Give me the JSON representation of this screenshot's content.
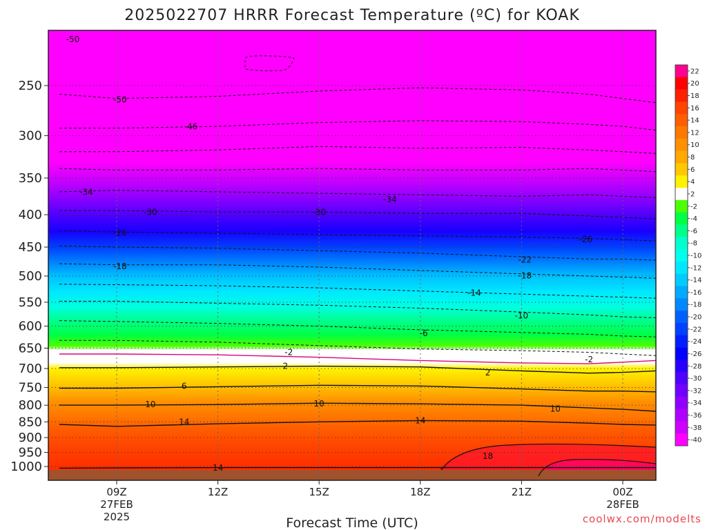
{
  "chart_data": {
    "type": "heatmap",
    "title": "2025022707 HRRR Forecast Temperature (ºC) for KOAK",
    "xlabel": "Forecast Time (UTC)",
    "ylabel": "",
    "y_scale": "log-pressure",
    "y_ticks": [
      250,
      300,
      350,
      400,
      450,
      500,
      550,
      600,
      650,
      700,
      750,
      800,
      850,
      900,
      950,
      1000
    ],
    "x_ticks": [
      {
        "label": "09Z",
        "sub1": "27FEB",
        "sub2": "2025"
      },
      {
        "label": "12Z",
        "sub1": "",
        "sub2": ""
      },
      {
        "label": "15Z",
        "sub1": "",
        "sub2": ""
      },
      {
        "label": "18Z",
        "sub1": "",
        "sub2": ""
      },
      {
        "label": "21Z",
        "sub1": "",
        "sub2": ""
      },
      {
        "label": "00Z",
        "sub1": "28FEB",
        "sub2": ""
      }
    ],
    "colorbar": {
      "labels": [
        "22",
        "20",
        "18",
        "16",
        "14",
        "12",
        "10",
        "8",
        "6",
        "4",
        "2",
        "-2",
        "-4",
        "-6",
        "-8",
        "-10",
        "-12",
        "-14",
        "-16",
        "-18",
        "-20",
        "-22",
        "-24",
        "-26",
        "-28",
        "-30",
        "-32",
        "-34",
        "-36",
        "-38",
        "-40"
      ],
      "colors": [
        "#ff0090",
        "#ff0000",
        "#ff2000",
        "#ff4400",
        "#ff5e00",
        "#ff7800",
        "#ff9000",
        "#ffa800",
        "#ffc800",
        "#fff200",
        "#ffffff",
        "#4cff00",
        "#00ff44",
        "#00ff88",
        "#00ffcc",
        "#00ffee",
        "#00e8ff",
        "#00ccff",
        "#00aaff",
        "#0088ff",
        "#0060ff",
        "#0040ff",
        "#0020ff",
        "#0000ff",
        "#2800ff",
        "#5000ff",
        "#7000ff",
        "#9000ff",
        "#b000ff",
        "#d000ff",
        "#ff00ff"
      ]
    },
    "contour_labels": [
      {
        "text": "-50",
        "t": 7.7,
        "p": 211
      },
      {
        "text": "-50",
        "t": 9.1,
        "p": 263
      },
      {
        "text": "-46",
        "t": 11.2,
        "p": 290
      },
      {
        "text": "-34",
        "t": 8.1,
        "p": 368
      },
      {
        "text": "-34",
        "t": 17.1,
        "p": 378
      },
      {
        "text": "-30",
        "t": 10.0,
        "p": 396
      },
      {
        "text": "-30",
        "t": 15.0,
        "p": 396
      },
      {
        "text": "-26",
        "t": 9.1,
        "p": 427
      },
      {
        "text": "-26",
        "t": 22.9,
        "p": 437
      },
      {
        "text": "-22",
        "t": 21.1,
        "p": 471
      },
      {
        "text": "-18",
        "t": 9.1,
        "p": 482
      },
      {
        "text": "-18",
        "t": 21.1,
        "p": 499
      },
      {
        "text": "-14",
        "t": 19.6,
        "p": 531
      },
      {
        "text": "-10",
        "t": 21.0,
        "p": 577
      },
      {
        "text": "-6",
        "t": 18.1,
        "p": 615
      },
      {
        "text": "-2",
        "t": 14.1,
        "p": 659
      },
      {
        "text": "-2",
        "t": 23.0,
        "p": 677
      },
      {
        "text": "2",
        "t": 14.0,
        "p": 693
      },
      {
        "text": "2",
        "t": 20.0,
        "p": 710
      },
      {
        "text": "6",
        "t": 11.0,
        "p": 745
      },
      {
        "text": "10",
        "t": 10.0,
        "p": 797
      },
      {
        "text": "10",
        "t": 15.0,
        "p": 795
      },
      {
        "text": "10",
        "t": 22.0,
        "p": 810
      },
      {
        "text": "14",
        "t": 11.0,
        "p": 849
      },
      {
        "text": "14",
        "t": 18.0,
        "p": 845
      },
      {
        "text": "14",
        "t": 12.0,
        "p": 1004
      },
      {
        "text": "18",
        "t": 20.0,
        "p": 962
      }
    ]
  },
  "credit": "coolwx.com/modelts"
}
